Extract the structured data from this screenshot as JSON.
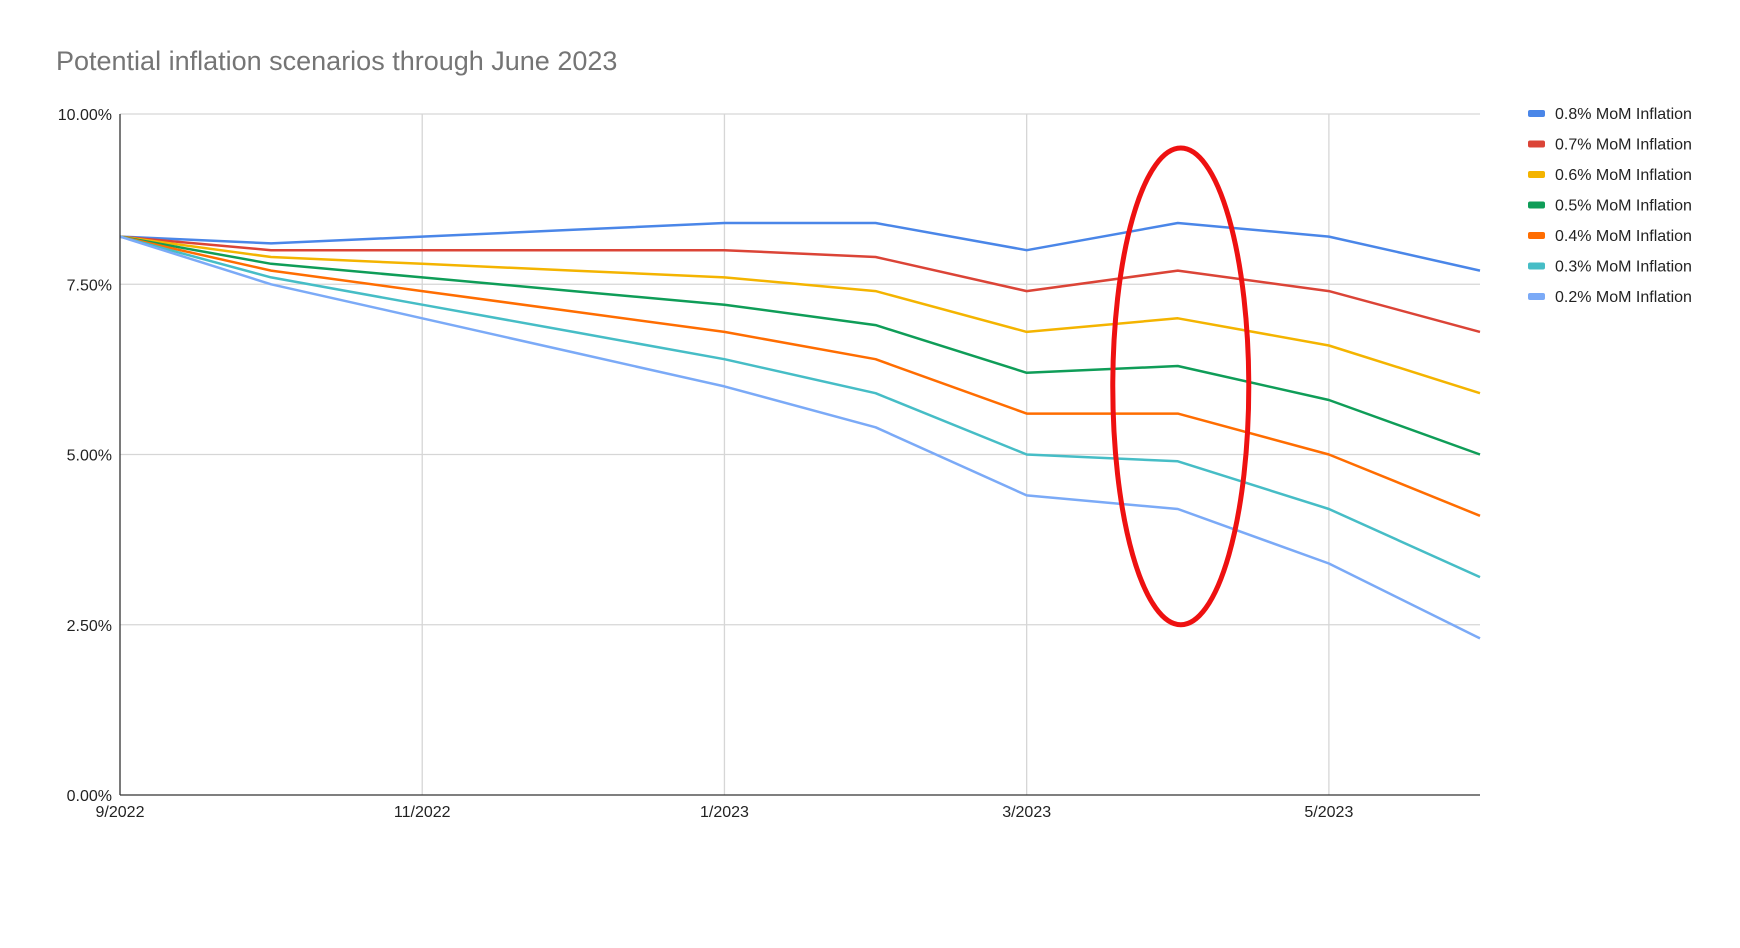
{
  "chart_data": {
    "type": "line",
    "title": "Potential inflation scenarios through June 2023",
    "xlabel": "",
    "ylabel": "",
    "x": [
      "9/2022",
      "10/2022",
      "11/2022",
      "12/2022",
      "1/2023",
      "2/2023",
      "3/2023",
      "4/2023",
      "5/2023",
      "6/2023"
    ],
    "x_tick_labels": [
      "9/2022",
      "11/2022",
      "1/2023",
      "3/2023",
      "5/2023"
    ],
    "y_tick_labels": [
      "0.00%",
      "2.50%",
      "5.00%",
      "7.50%",
      "10.00%"
    ],
    "ylim": [
      0,
      10
    ],
    "grid": true,
    "legend_position": "right",
    "series": [
      {
        "name": "0.8% MoM Inflation",
        "color": "#4A86E8",
        "values": [
          8.2,
          8.1,
          8.2,
          8.3,
          8.4,
          8.4,
          8.0,
          8.4,
          8.2,
          7.7
        ]
      },
      {
        "name": "0.7% MoM Inflation",
        "color": "#DB4437",
        "values": [
          8.2,
          8.0,
          8.0,
          8.0,
          8.0,
          7.9,
          7.4,
          7.7,
          7.4,
          6.8
        ]
      },
      {
        "name": "0.6% MoM Inflation",
        "color": "#F4B400",
        "values": [
          8.2,
          7.9,
          7.8,
          7.7,
          7.6,
          7.4,
          6.8,
          7.0,
          6.6,
          5.9
        ]
      },
      {
        "name": "0.5% MoM Inflation",
        "color": "#0F9D58",
        "values": [
          8.2,
          7.8,
          7.6,
          7.4,
          7.2,
          6.9,
          6.2,
          6.3,
          5.8,
          5.0
        ]
      },
      {
        "name": "0.4% MoM Inflation",
        "color": "#FF6D01",
        "values": [
          8.2,
          7.7,
          7.4,
          7.1,
          6.8,
          6.4,
          5.6,
          5.6,
          5.0,
          4.1
        ]
      },
      {
        "name": "0.3% MoM Inflation",
        "color": "#46BDC6",
        "values": [
          8.2,
          7.6,
          7.2,
          6.8,
          6.4,
          5.9,
          5.0,
          4.9,
          4.2,
          3.2
        ]
      },
      {
        "name": "0.2% MoM Inflation",
        "color": "#7BAAF7",
        "values": [
          8.2,
          7.5,
          7.0,
          6.5,
          6.0,
          5.4,
          4.4,
          4.2,
          3.4,
          2.3
        ]
      }
    ],
    "annotations": [
      {
        "type": "ellipse",
        "color": "#EE1111",
        "x": "4/2023",
        "y_range": [
          2.5,
          9.5
        ]
      }
    ]
  }
}
